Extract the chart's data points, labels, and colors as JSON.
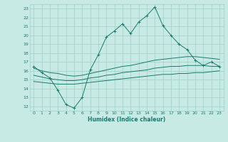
{
  "xlabel": "Humidex (Indice chaleur)",
  "ylabel": "",
  "xlim": [
    -0.5,
    23.5
  ],
  "ylim": [
    11.5,
    23.5
  ],
  "xticks": [
    0,
    1,
    2,
    3,
    4,
    5,
    6,
    7,
    8,
    9,
    10,
    11,
    12,
    13,
    14,
    15,
    16,
    17,
    18,
    19,
    20,
    21,
    22,
    23
  ],
  "yticks": [
    12,
    13,
    14,
    15,
    16,
    17,
    18,
    19,
    20,
    21,
    22,
    23
  ],
  "bg_color": "#c8eae4",
  "line_color": "#1a7a6e",
  "grid_color": "#a0cfc8",
  "lines": [
    {
      "x": [
        0,
        1,
        2,
        3,
        4,
        5,
        6,
        7,
        8,
        9,
        10,
        11,
        12,
        13,
        14,
        15,
        16,
        17,
        18,
        19,
        20,
        21,
        22,
        23
      ],
      "y": [
        16.5,
        15.8,
        15.2,
        13.8,
        12.2,
        11.8,
        13.0,
        16.1,
        17.8,
        19.8,
        20.5,
        21.3,
        20.2,
        21.5,
        22.2,
        23.2,
        21.1,
        20.0,
        19.0,
        18.4,
        17.2,
        16.6,
        17.0,
        16.5
      ],
      "marker": true
    },
    {
      "x": [
        0,
        1,
        2,
        3,
        4,
        5,
        6,
        7,
        8,
        9,
        10,
        11,
        12,
        13,
        14,
        15,
        16,
        17,
        18,
        19,
        20,
        21,
        22,
        23
      ],
      "y": [
        16.3,
        16.0,
        15.8,
        15.7,
        15.5,
        15.4,
        15.5,
        15.7,
        15.9,
        16.1,
        16.3,
        16.5,
        16.6,
        16.8,
        17.0,
        17.2,
        17.3,
        17.4,
        17.5,
        17.6,
        17.6,
        17.5,
        17.4,
        17.3
      ],
      "marker": false
    },
    {
      "x": [
        0,
        1,
        2,
        3,
        4,
        5,
        6,
        7,
        8,
        9,
        10,
        11,
        12,
        13,
        14,
        15,
        16,
        17,
        18,
        19,
        20,
        21,
        22,
        23
      ],
      "y": [
        15.5,
        15.3,
        15.1,
        15.0,
        14.9,
        14.9,
        15.0,
        15.2,
        15.3,
        15.5,
        15.6,
        15.8,
        15.9,
        16.0,
        16.1,
        16.3,
        16.4,
        16.5,
        16.5,
        16.6,
        16.6,
        16.6,
        16.5,
        16.5
      ],
      "marker": false
    },
    {
      "x": [
        0,
        1,
        2,
        3,
        4,
        5,
        6,
        7,
        8,
        9,
        10,
        11,
        12,
        13,
        14,
        15,
        16,
        17,
        18,
        19,
        20,
        21,
        22,
        23
      ],
      "y": [
        14.8,
        14.7,
        14.6,
        14.5,
        14.5,
        14.5,
        14.6,
        14.7,
        14.8,
        14.9,
        15.0,
        15.1,
        15.2,
        15.3,
        15.4,
        15.5,
        15.6,
        15.6,
        15.7,
        15.7,
        15.8,
        15.8,
        15.9,
        16.0
      ],
      "marker": false
    }
  ]
}
